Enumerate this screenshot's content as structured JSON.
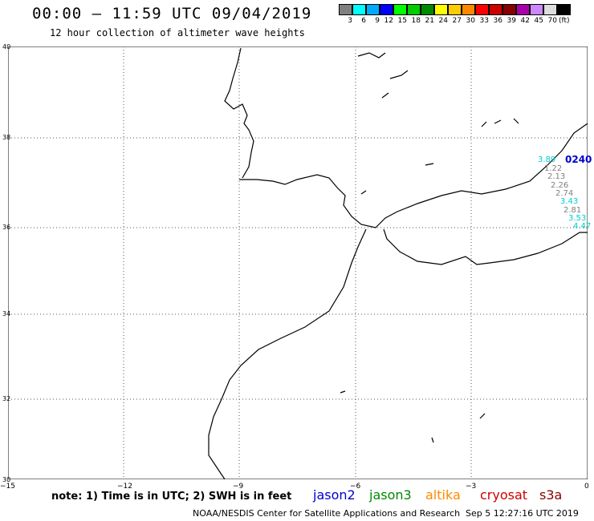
{
  "header": {
    "title": "00:00 – 11:59 UTC 09/04/2019",
    "subtitle": "12 hour collection of altimeter wave heights"
  },
  "legend": {
    "colors": [
      "#808080",
      "#00ffff",
      "#00aaff",
      "#0000ff",
      "#00ff00",
      "#00cc00",
      "#008800",
      "#ffff00",
      "#ffcc00",
      "#ff8800",
      "#ff0000",
      "#cc0000",
      "#880000",
      "#aa00aa",
      "#cc88ff",
      "#dddddd",
      "#000000"
    ],
    "ticks": [
      "3",
      "6",
      "9",
      "12",
      "15",
      "18",
      "21",
      "24",
      "27",
      "30",
      "33",
      "36",
      "39",
      "42",
      "45",
      "70"
    ],
    "unit": "(ft)"
  },
  "axes": {
    "x_labels": [
      "−15",
      "−12",
      "−9",
      "−6",
      "−3",
      "0"
    ],
    "y_labels": [
      "40",
      "38",
      "36",
      "34",
      "32",
      "30"
    ]
  },
  "observations": [
    {
      "value": "3.89",
      "color": "#00cccc"
    },
    {
      "value": "1.22",
      "color": "#808080"
    },
    {
      "value": "2.13",
      "color": "#808080"
    },
    {
      "value": "2.26",
      "color": "#808080"
    },
    {
      "value": "2.74",
      "color": "#808080"
    },
    {
      "value": "3.43",
      "color": "#00cccc"
    },
    {
      "value": "2.81",
      "color": "#808080"
    },
    {
      "value": "3.53",
      "color": "#00cccc"
    },
    {
      "value": "4.47",
      "color": "#00cccc"
    }
  ],
  "track_time": "0240",
  "note": "note: 1) Time is in UTC; 2) SWH is in feet",
  "satellites": [
    {
      "name": "jason2",
      "color": "#0000cc"
    },
    {
      "name": "jason3",
      "color": "#008800"
    },
    {
      "name": "altika",
      "color": "#ff8800"
    },
    {
      "name": "cryosat",
      "color": "#cc0000"
    },
    {
      "name": "s3a",
      "color": "#880000"
    }
  ],
  "footer": {
    "org": "NOAA/NESDIS Center for Satellite Applications and Research",
    "timestamp": "Sep  5 12:27:16 UTC 2019"
  }
}
